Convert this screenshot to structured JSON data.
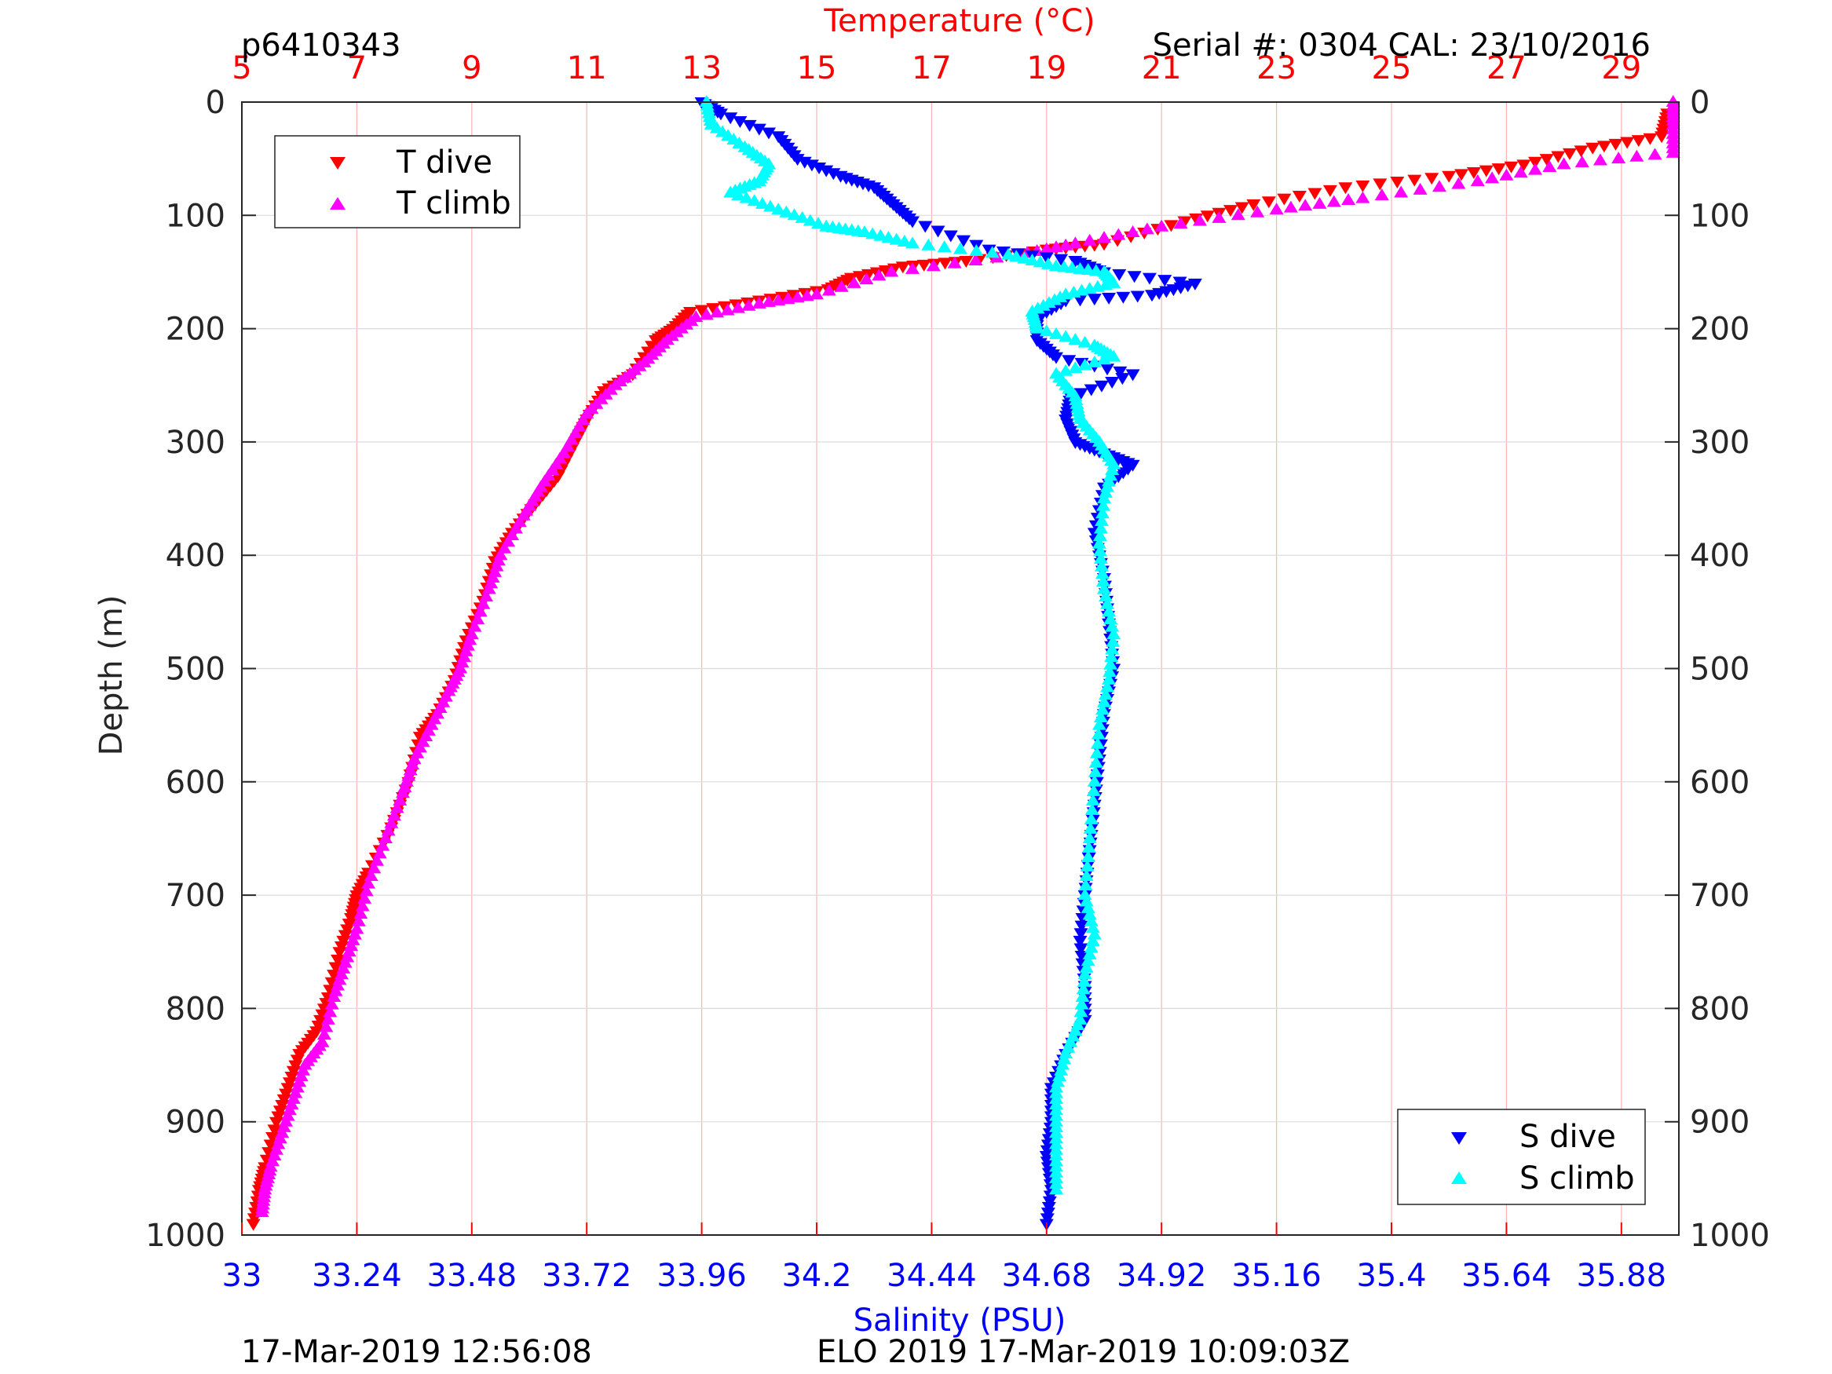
{
  "header": {
    "profile_id": "p6410343",
    "serial": "Serial #: 0304  CAL: 23/10/2016"
  },
  "footer": {
    "left": "17-Mar-2019 12:56:08",
    "center": "ELO 2019 17-Mar-2019 10:09:03Z"
  },
  "chart_data": {
    "type": "scatter",
    "title": "",
    "top_xlabel": "Temperature (°C)",
    "bottom_xlabel": "Salinity (PSU)",
    "ylabel": "Depth (m)",
    "top_xlim": [
      5,
      30
    ],
    "bottom_xlim": [
      33,
      36
    ],
    "ylim": [
      0,
      1000
    ],
    "y_reversed": true,
    "grid": true,
    "top_xticks": [
      "5",
      "7",
      "9",
      "11",
      "13",
      "15",
      "17",
      "19",
      "21",
      "23",
      "25",
      "27",
      "29"
    ],
    "bottom_xticks": [
      "33",
      "33.24",
      "33.48",
      "33.72",
      "33.96",
      "34.2",
      "34.44",
      "34.68",
      "34.92",
      "35.16",
      "35.4",
      "35.64",
      "35.88"
    ],
    "yticks": [
      "0",
      "100",
      "200",
      "300",
      "400",
      "500",
      "600",
      "700",
      "800",
      "900",
      "1000"
    ],
    "legend_top": {
      "placement": "top-left",
      "entries": [
        "T dive",
        "T climb"
      ]
    },
    "legend_bottom": {
      "placement": "bottom-right",
      "entries": [
        "S dive",
        "S climb"
      ]
    },
    "colors": {
      "temperature_axis": "#ff0000",
      "salinity_axis": "#0000ff",
      "t_dive": "#ff0000",
      "t_climb": "#ff00ff",
      "s_dive": "#0000ff",
      "s_climb": "#00ffff"
    },
    "series": [
      {
        "name": "T dive",
        "axis": "temperature",
        "marker": "triangle-down",
        "points": [
          [
            29.8,
            10
          ],
          [
            29.7,
            30
          ],
          [
            28.5,
            40
          ],
          [
            27.3,
            55
          ],
          [
            26.0,
            65
          ],
          [
            24.2,
            75
          ],
          [
            22.6,
            90
          ],
          [
            21.4,
            105
          ],
          [
            20.0,
            125
          ],
          [
            19.0,
            130
          ],
          [
            17.6,
            140
          ],
          [
            16.5,
            145
          ],
          [
            15.6,
            155
          ],
          [
            15.2,
            165
          ],
          [
            14.0,
            175
          ],
          [
            12.8,
            185
          ],
          [
            12.5,
            200
          ],
          [
            12.2,
            210
          ],
          [
            11.8,
            240
          ],
          [
            11.3,
            255
          ],
          [
            11.0,
            280
          ],
          [
            10.8,
            300
          ],
          [
            10.5,
            330
          ],
          [
            10.1,
            355
          ],
          [
            9.7,
            380
          ],
          [
            9.4,
            405
          ],
          [
            9.2,
            440
          ],
          [
            8.9,
            475
          ],
          [
            8.7,
            510
          ],
          [
            8.4,
            540
          ],
          [
            8.1,
            560
          ],
          [
            7.9,
            600
          ],
          [
            7.6,
            640
          ],
          [
            7.2,
            680
          ],
          [
            7.0,
            700
          ],
          [
            6.9,
            720
          ],
          [
            6.7,
            750
          ],
          [
            6.5,
            790
          ],
          [
            6.3,
            820
          ],
          [
            6.0,
            840
          ],
          [
            5.8,
            870
          ],
          [
            5.6,
            900
          ],
          [
            5.4,
            940
          ],
          [
            5.3,
            960
          ],
          [
            5.2,
            990
          ]
        ]
      },
      {
        "name": "T climb",
        "axis": "temperature",
        "marker": "triangle-up",
        "points": [
          [
            29.9,
            0
          ],
          [
            29.9,
            20
          ],
          [
            29.9,
            45
          ],
          [
            28.0,
            55
          ],
          [
            26.5,
            70
          ],
          [
            24.5,
            85
          ],
          [
            23.0,
            95
          ],
          [
            21.0,
            110
          ],
          [
            19.5,
            125
          ],
          [
            18.5,
            135
          ],
          [
            16.3,
            150
          ],
          [
            15.0,
            170
          ],
          [
            14.0,
            178
          ],
          [
            12.9,
            190
          ],
          [
            12.4,
            210
          ],
          [
            12.0,
            230
          ],
          [
            11.5,
            250
          ],
          [
            11.0,
            275
          ],
          [
            10.6,
            310
          ],
          [
            10.2,
            340
          ],
          [
            9.9,
            365
          ],
          [
            9.5,
            400
          ],
          [
            9.3,
            430
          ],
          [
            9.0,
            470
          ],
          [
            8.8,
            500
          ],
          [
            8.6,
            520
          ],
          [
            8.3,
            550
          ],
          [
            8.0,
            580
          ],
          [
            7.8,
            610
          ],
          [
            7.5,
            650
          ],
          [
            7.2,
            690
          ],
          [
            7.0,
            730
          ],
          [
            6.8,
            760
          ],
          [
            6.6,
            790
          ],
          [
            6.4,
            830
          ],
          [
            6.1,
            850
          ],
          [
            5.9,
            880
          ],
          [
            5.7,
            910
          ],
          [
            5.5,
            940
          ],
          [
            5.4,
            960
          ],
          [
            5.35,
            980
          ]
        ]
      },
      {
        "name": "S dive",
        "axis": "salinity",
        "marker": "triangle-down",
        "points": [
          [
            33.96,
            0
          ],
          [
            34.0,
            10
          ],
          [
            34.12,
            30
          ],
          [
            34.16,
            50
          ],
          [
            34.25,
            65
          ],
          [
            34.32,
            75
          ],
          [
            34.36,
            90
          ],
          [
            34.4,
            105
          ],
          [
            34.56,
            130
          ],
          [
            34.74,
            140
          ],
          [
            34.8,
            150
          ],
          [
            34.99,
            160
          ],
          [
            34.9,
            170
          ],
          [
            34.72,
            175
          ],
          [
            34.66,
            190
          ],
          [
            34.66,
            210
          ],
          [
            34.7,
            225
          ],
          [
            34.86,
            240
          ],
          [
            34.73,
            260
          ],
          [
            34.72,
            280
          ],
          [
            34.74,
            300
          ],
          [
            34.8,
            310
          ],
          [
            34.86,
            320
          ],
          [
            34.8,
            340
          ],
          [
            34.78,
            380
          ],
          [
            34.8,
            420
          ],
          [
            34.81,
            460
          ],
          [
            34.82,
            500
          ],
          [
            34.8,
            540
          ],
          [
            34.79,
            580
          ],
          [
            34.78,
            620
          ],
          [
            34.77,
            660
          ],
          [
            34.76,
            700
          ],
          [
            34.75,
            740
          ],
          [
            34.76,
            780
          ],
          [
            34.76,
            810
          ],
          [
            34.72,
            840
          ],
          [
            34.69,
            870
          ],
          [
            34.69,
            900
          ],
          [
            34.68,
            930
          ],
          [
            34.69,
            960
          ],
          [
            34.68,
            990
          ]
        ]
      },
      {
        "name": "S climb",
        "axis": "salinity",
        "marker": "triangle-up",
        "points": [
          [
            33.97,
            0
          ],
          [
            33.98,
            20
          ],
          [
            34.05,
            40
          ],
          [
            34.1,
            55
          ],
          [
            34.08,
            70
          ],
          [
            34.02,
            80
          ],
          [
            34.12,
            95
          ],
          [
            34.22,
            110
          ],
          [
            34.3,
            115
          ],
          [
            34.4,
            125
          ],
          [
            34.6,
            135
          ],
          [
            34.7,
            145
          ],
          [
            34.8,
            150
          ],
          [
            34.82,
            160
          ],
          [
            34.72,
            170
          ],
          [
            34.65,
            185
          ],
          [
            34.66,
            200
          ],
          [
            34.78,
            215
          ],
          [
            34.82,
            225
          ],
          [
            34.7,
            240
          ],
          [
            34.74,
            260
          ],
          [
            34.75,
            280
          ],
          [
            34.79,
            300
          ],
          [
            34.82,
            320
          ],
          [
            34.8,
            350
          ],
          [
            34.79,
            390
          ],
          [
            34.8,
            430
          ],
          [
            34.82,
            470
          ],
          [
            34.81,
            510
          ],
          [
            34.79,
            550
          ],
          [
            34.78,
            600
          ],
          [
            34.77,
            650
          ],
          [
            34.76,
            700
          ],
          [
            34.78,
            735
          ],
          [
            34.76,
            770
          ],
          [
            34.75,
            810
          ],
          [
            34.72,
            840
          ],
          [
            34.7,
            870
          ],
          [
            34.7,
            900
          ],
          [
            34.7,
            930
          ],
          [
            34.7,
            960
          ]
        ]
      }
    ]
  }
}
